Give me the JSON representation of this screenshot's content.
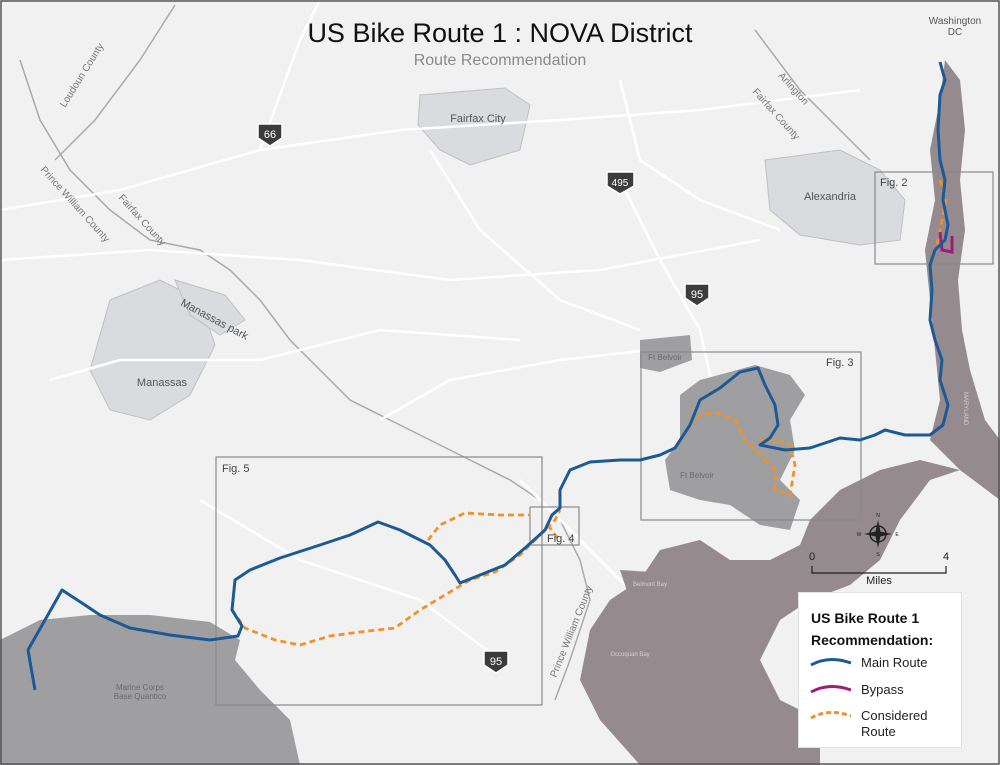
{
  "map": {
    "title": "US Bike Route 1 : NOVA District",
    "subtitle": "Route Recommendation",
    "places": {
      "washington": "Washington DC",
      "fairfax_city": "Fairfax City",
      "alexandria": "Alexandria",
      "manassas": "Manassas",
      "manassas_park": "Manassas park",
      "ft_belvoir": "Ft Belvoir",
      "marine_base": "Marine Corps Base Quantico",
      "belmont_bay": "Belmont Bay",
      "occoquan_bay": "Occoquan Bay",
      "maryland": "MARYLAND"
    },
    "county_labels": {
      "loudoun": "Loudoun County",
      "fairfax_west": "Fairfax County",
      "prince_william_north": "Prince William County",
      "arlington": "Arlington",
      "fairfax_east": "Fairfax County",
      "prince_william_south": "Prince William County"
    },
    "highway_shields": [
      "66",
      "495",
      "95",
      "95"
    ],
    "figures": {
      "fig2": "Fig. 2",
      "fig3": "Fig. 3",
      "fig4": "Fig. 4",
      "fig5": "Fig. 5"
    },
    "compass": {
      "n": "N",
      "s": "S",
      "e": "E",
      "w": "W"
    },
    "scale": {
      "start": "0",
      "end": "4",
      "unit": "Miles"
    },
    "legend": {
      "title_line1": "US Bike Route 1",
      "title_line2": "Recommendation:",
      "items": [
        {
          "label": "Main Route",
          "color": "#1c5a95",
          "style": "solid"
        },
        {
          "label": "Bypass",
          "color": "#9b1f7a",
          "style": "solid"
        },
        {
          "label": "Considered Route",
          "color": "#f0922a",
          "style": "dashed"
        }
      ]
    },
    "colors": {
      "land": "#f2f2f3",
      "water": "#958a8e",
      "base_area": "#9e9ea0",
      "city_area": "#dcdde0",
      "main_route": "#1c5a95",
      "bypass": "#9b1f7a",
      "considered": "#f0922a"
    }
  }
}
